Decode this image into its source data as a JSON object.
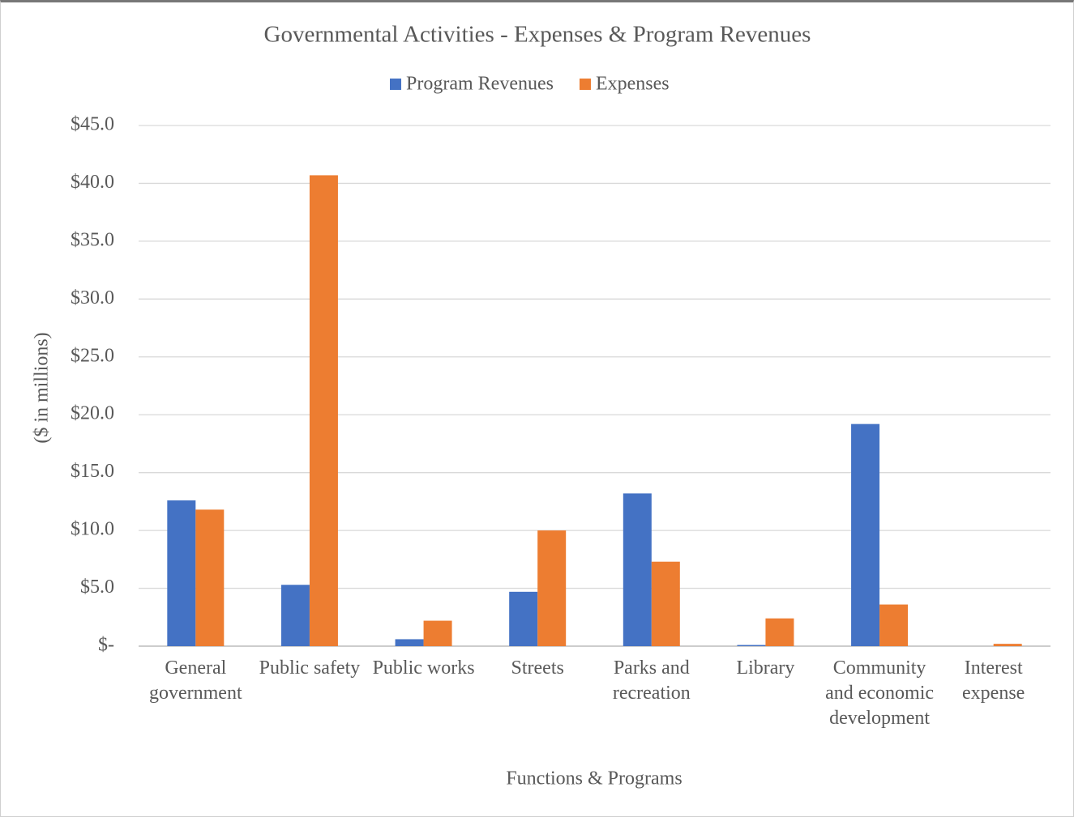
{
  "chart_data": {
    "type": "bar",
    "title": "Governmental Activities - Expenses & Program Revenues",
    "x_label": "Functions & Programs",
    "y_label": "($ in millions)",
    "categories": [
      "General government",
      "Public safety",
      "Public works",
      "Streets",
      "Parks and recreation",
      "Library",
      "Community and economic development",
      "Interest expense"
    ],
    "series": [
      {
        "name": "Program Revenues",
        "color": "#4472c4",
        "values": [
          12.6,
          5.3,
          0.6,
          4.7,
          13.2,
          0.1,
          19.2,
          0
        ]
      },
      {
        "name": "Expenses",
        "color": "#ed7d31",
        "values": [
          11.8,
          40.7,
          2.2,
          10.0,
          7.3,
          2.4,
          3.6,
          0.2
        ]
      }
    ],
    "ylim": [
      0,
      45
    ],
    "yticks": [
      {
        "value": 0,
        "label": "$-"
      },
      {
        "value": 5,
        "label": "$5.0"
      },
      {
        "value": 10,
        "label": "$10.0"
      },
      {
        "value": 15,
        "label": "$15.0"
      },
      {
        "value": 20,
        "label": "$20.0"
      },
      {
        "value": 25,
        "label": "$25.0"
      },
      {
        "value": 30,
        "label": "$30.0"
      },
      {
        "value": 35,
        "label": "$35.0"
      },
      {
        "value": 40,
        "label": "$40.0"
      },
      {
        "value": 45,
        "label": "$45.0"
      }
    ],
    "grid": true,
    "legend": "top"
  }
}
